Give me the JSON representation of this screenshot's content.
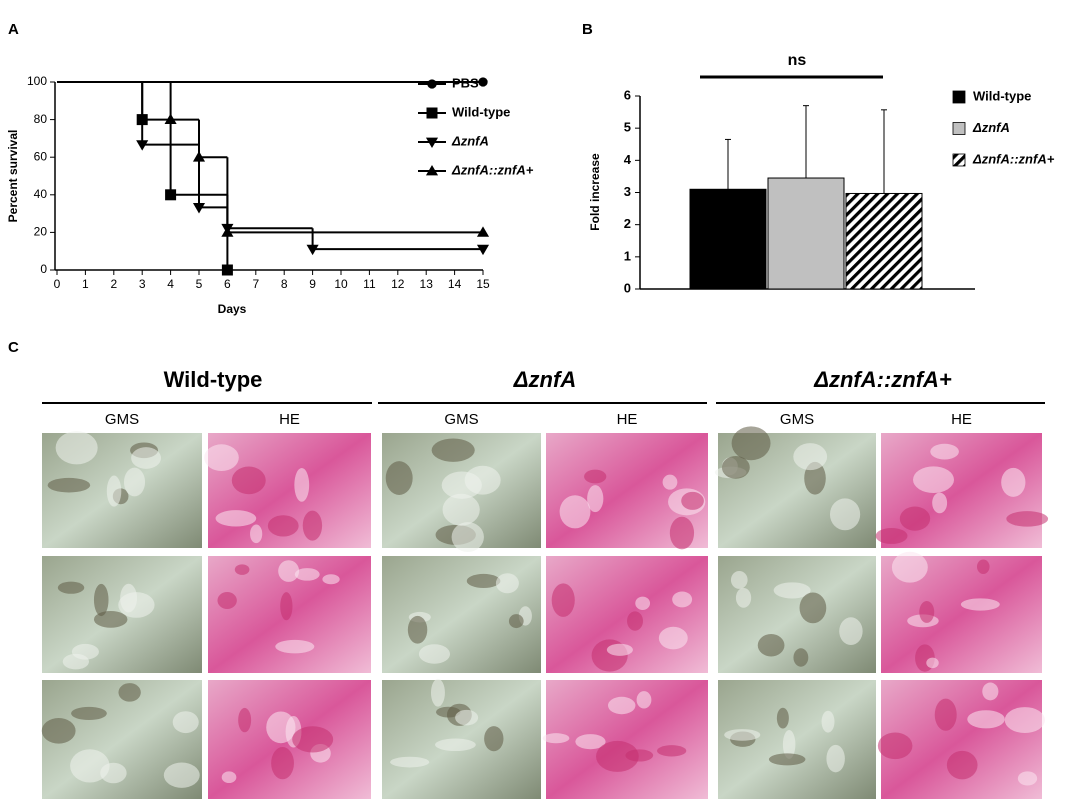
{
  "panel_labels": [
    "A",
    "B",
    "C"
  ],
  "chart_data": [
    {
      "type": "step",
      "xlabel": "Days",
      "ylabel": "Percent survival",
      "xlim": [
        0,
        15
      ],
      "xticks": [
        0,
        1,
        2,
        3,
        4,
        5,
        6,
        7,
        8,
        9,
        10,
        11,
        12,
        13,
        14,
        15
      ],
      "ylim": [
        0,
        100
      ],
      "yticks": [
        0,
        20,
        40,
        60,
        80,
        100
      ],
      "series": [
        {
          "name": "PBS",
          "marker": "circle",
          "color": "#000000",
          "style": "normal",
          "x": [
            0,
            15
          ],
          "values": [
            100,
            100
          ]
        },
        {
          "name": "Wild-type",
          "marker": "square",
          "color": "#000000",
          "style": "normal",
          "x": [
            0,
            3,
            4,
            6
          ],
          "values": [
            100,
            80,
            40,
            0
          ]
        },
        {
          "name": "ΔznfA",
          "marker": "triangle-down",
          "color": "#000000",
          "style": "italic",
          "x": [
            0,
            3,
            5,
            6,
            9,
            15
          ],
          "values": [
            100,
            66.7,
            33.3,
            22.2,
            11.1,
            11.1
          ]
        },
        {
          "name": "ΔznfA::znfA+",
          "marker": "triangle-up",
          "color": "#000000",
          "style": "italic",
          "x": [
            0,
            4,
            5,
            6,
            15
          ],
          "values": [
            100,
            80,
            60,
            20,
            20
          ]
        }
      ]
    },
    {
      "type": "bar",
      "ylabel": "Fold increase",
      "annotation": "ns",
      "ylim": [
        0,
        6
      ],
      "yticks": [
        0,
        1,
        2,
        3,
        4,
        5,
        6
      ],
      "series": [
        {
          "name": "Wild-type",
          "color": "#000000",
          "pattern": "solid",
          "style": "normal",
          "values": [
            3.1
          ],
          "errors": [
            1.55
          ]
        },
        {
          "name": "ΔznfA",
          "color": "#c0c0c0",
          "pattern": "solid",
          "style": "italic",
          "values": [
            3.45
          ],
          "errors": [
            2.25
          ]
        },
        {
          "name": "ΔznfA::znfA+",
          "color": "#000000",
          "pattern": "hatch",
          "style": "italic",
          "values": [
            2.97
          ],
          "errors": [
            2.6
          ]
        }
      ]
    }
  ],
  "histology": {
    "groups": [
      {
        "title": "Wild-type",
        "style": "normal",
        "stains": [
          "GMS",
          "HE"
        ]
      },
      {
        "title": "ΔznfA",
        "style": "italic",
        "stains": [
          "GMS",
          "HE"
        ]
      },
      {
        "title": "ΔznfA::znfA+",
        "style": "italic",
        "stains": [
          "GMS",
          "HE"
        ]
      }
    ]
  }
}
